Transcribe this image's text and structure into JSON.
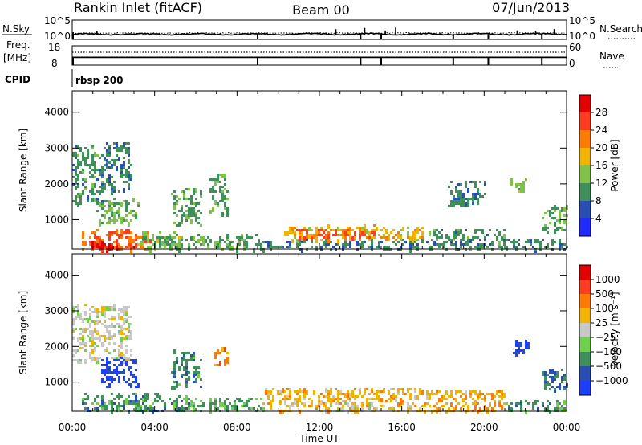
{
  "header": {
    "station": "Rankin Inlet (fitACF)",
    "beam": "Beam 00",
    "date": "07/Jun/2013"
  },
  "strips": {
    "nsky_label": "N.Sky",
    "nsearch_label": "N.Search",
    "nsky_ticks": [
      "10^5",
      "10^0"
    ],
    "nsearch_ticks": [
      "10^5",
      "10^0"
    ],
    "freq_label": "Freq.",
    "freq_unit": "[MHz]",
    "freq_ticks": [
      "18",
      "8"
    ],
    "nave_label": "Nave",
    "nave_ticks": [
      "60",
      "0"
    ],
    "cpid_label": "CPID",
    "cpid_value": "rbsp 200",
    "freq_mhz": 12.0,
    "nave_level": 40,
    "scan_markers_ut": [
      9.0,
      14.0,
      15.0,
      18.5,
      20.2,
      22.8
    ]
  },
  "chart_data": [
    {
      "type": "heatmap",
      "parameter": "Power",
      "ylabel": "Slant Range [km]",
      "ylim": [
        180,
        4600
      ],
      "yticks": [
        1000,
        2000,
        3000,
        4000
      ],
      "xlim": [
        0,
        24
      ],
      "xticks": [
        "00:00",
        "04:00",
        "08:00",
        "12:00",
        "16:00",
        "20:00",
        "00:00"
      ],
      "colorbar": {
        "label": "Power [dB]",
        "ticks": [
          "4",
          "8",
          "12",
          "16",
          "20",
          "24",
          "28"
        ],
        "colors": [
          "#1f2bff",
          "#2a4fb4",
          "#3f8f5a",
          "#7fc24a",
          "#f0b400",
          "#ff7a00",
          "#ff3b1f",
          "#e60000"
        ],
        "min": 0,
        "max": 32
      },
      "regions": [
        {
          "t0": 0.4,
          "t1": 3.8,
          "r0": 200,
          "r1": 750,
          "v": 24
        },
        {
          "t0": 0.6,
          "t1": 2.2,
          "r0": 200,
          "r1": 400,
          "v": 29
        },
        {
          "t0": 0.0,
          "t1": 1.6,
          "r0": 1500,
          "r1": 3100,
          "v": 10
        },
        {
          "t0": 1.6,
          "t1": 2.8,
          "r0": 1800,
          "r1": 3200,
          "v": 9
        },
        {
          "t0": 1.2,
          "t1": 3.2,
          "r0": 900,
          "r1": 1600,
          "v": 13
        },
        {
          "t0": 3.2,
          "t1": 5.2,
          "r0": 200,
          "r1": 700,
          "v": 14
        },
        {
          "t0": 4.8,
          "t1": 6.2,
          "r0": 900,
          "r1": 1900,
          "v": 11
        },
        {
          "t0": 6.6,
          "t1": 7.5,
          "r0": 1200,
          "r1": 2300,
          "v": 11
        },
        {
          "t0": 4.0,
          "t1": 9.0,
          "r0": 200,
          "r1": 600,
          "v": 11
        },
        {
          "t0": 9.0,
          "t1": 17.2,
          "r0": 200,
          "r1": 450,
          "v": 9
        },
        {
          "t0": 10.2,
          "t1": 17.0,
          "r0": 450,
          "r1": 850,
          "v": 18
        },
        {
          "t0": 10.8,
          "t1": 14.6,
          "r0": 520,
          "r1": 760,
          "v": 25
        },
        {
          "t0": 17.2,
          "t1": 21.0,
          "r0": 200,
          "r1": 750,
          "v": 10
        },
        {
          "t0": 18.2,
          "t1": 20.0,
          "r0": 1400,
          "r1": 2100,
          "v": 9
        },
        {
          "t0": 21.3,
          "t1": 22.1,
          "r0": 1800,
          "r1": 2200,
          "v": 14
        },
        {
          "t0": 22.8,
          "t1": 24.0,
          "r0": 700,
          "r1": 1400,
          "v": 12
        },
        {
          "t0": 21.0,
          "t1": 24.0,
          "r0": 200,
          "r1": 500,
          "v": 9
        }
      ]
    },
    {
      "type": "heatmap",
      "parameter": "Velocity",
      "ylabel": "Slant Range [km]",
      "ylim": [
        180,
        4600
      ],
      "yticks": [
        1000,
        2000,
        3000,
        4000
      ],
      "xlim": [
        0,
        24
      ],
      "xticks": [
        "00:00",
        "04:00",
        "08:00",
        "12:00",
        "16:00",
        "20:00",
        "00:00"
      ],
      "colorbar": {
        "label": "Velocity [m s⁻¹]",
        "ticks": [
          "1000",
          "500",
          "100",
          "25",
          "−25",
          "−100",
          "−500",
          "−1000"
        ],
        "colors": [
          "#1f3fff",
          "#2a4fb4",
          "#3f8f5a",
          "#6fd04a",
          "#c8c8c8",
          "#f0b400",
          "#ff7a00",
          "#ff3b1f",
          "#e60000"
        ],
        "min": 0,
        "max": 9
      },
      "regions": [
        {
          "t0": 0.0,
          "t1": 2.8,
          "r0": 1600,
          "r1": 3200,
          "v": 4.5
        },
        {
          "t0": 0.4,
          "t1": 3.6,
          "r0": 200,
          "r1": 700,
          "v": 2.5
        },
        {
          "t0": 1.4,
          "t1": 3.2,
          "r0": 900,
          "r1": 1700,
          "v": 0.8
        },
        {
          "t0": 3.0,
          "t1": 5.6,
          "r0": 200,
          "r1": 700,
          "v": 2.5
        },
        {
          "t0": 4.8,
          "t1": 6.2,
          "r0": 900,
          "r1": 1900,
          "v": 2.4
        },
        {
          "t0": 6.8,
          "t1": 7.5,
          "r0": 1400,
          "r1": 2000,
          "v": 6.5
        },
        {
          "t0": 5.4,
          "t1": 9.2,
          "r0": 200,
          "r1": 600,
          "v": 2.8
        },
        {
          "t0": 9.2,
          "t1": 17.2,
          "r0": 200,
          "r1": 850,
          "v": 5.5
        },
        {
          "t0": 12.2,
          "t1": 14.6,
          "r0": 200,
          "r1": 450,
          "v": 4.5
        },
        {
          "t0": 17.2,
          "t1": 21.0,
          "r0": 200,
          "r1": 800,
          "v": 5.8
        },
        {
          "t0": 21.3,
          "t1": 22.1,
          "r0": 1800,
          "r1": 2200,
          "v": 0.6
        },
        {
          "t0": 22.8,
          "t1": 24.0,
          "r0": 700,
          "r1": 1400,
          "v": 2.2
        },
        {
          "t0": 21.0,
          "t1": 24.0,
          "r0": 200,
          "r1": 500,
          "v": 2.6
        }
      ]
    }
  ],
  "xlabel": "Time UT"
}
